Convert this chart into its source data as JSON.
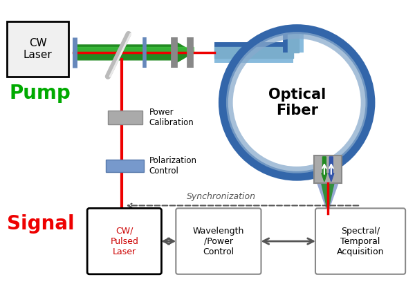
{
  "bg_color": "#ffffff",
  "pump_label": "Pump",
  "pump_color": "#00aa00",
  "signal_label": "Signal",
  "signal_color": "#ee0000",
  "optical_fiber_label": "Optical\nFiber",
  "power_cal_label": "Power\nCalibration",
  "polar_ctrl_label": "Polarization\nControl",
  "sync_label": "Synchronization",
  "green_beam_color": "#228B22",
  "green_beam_light": "#44cc44",
  "red_beam_color": "#ee0000",
  "blue_fiber_color": "#5599cc",
  "blue_fiber_light": "#aaccee",
  "gray_elem_color": "#aaaaaa",
  "blue_elem_color": "#6688bb"
}
